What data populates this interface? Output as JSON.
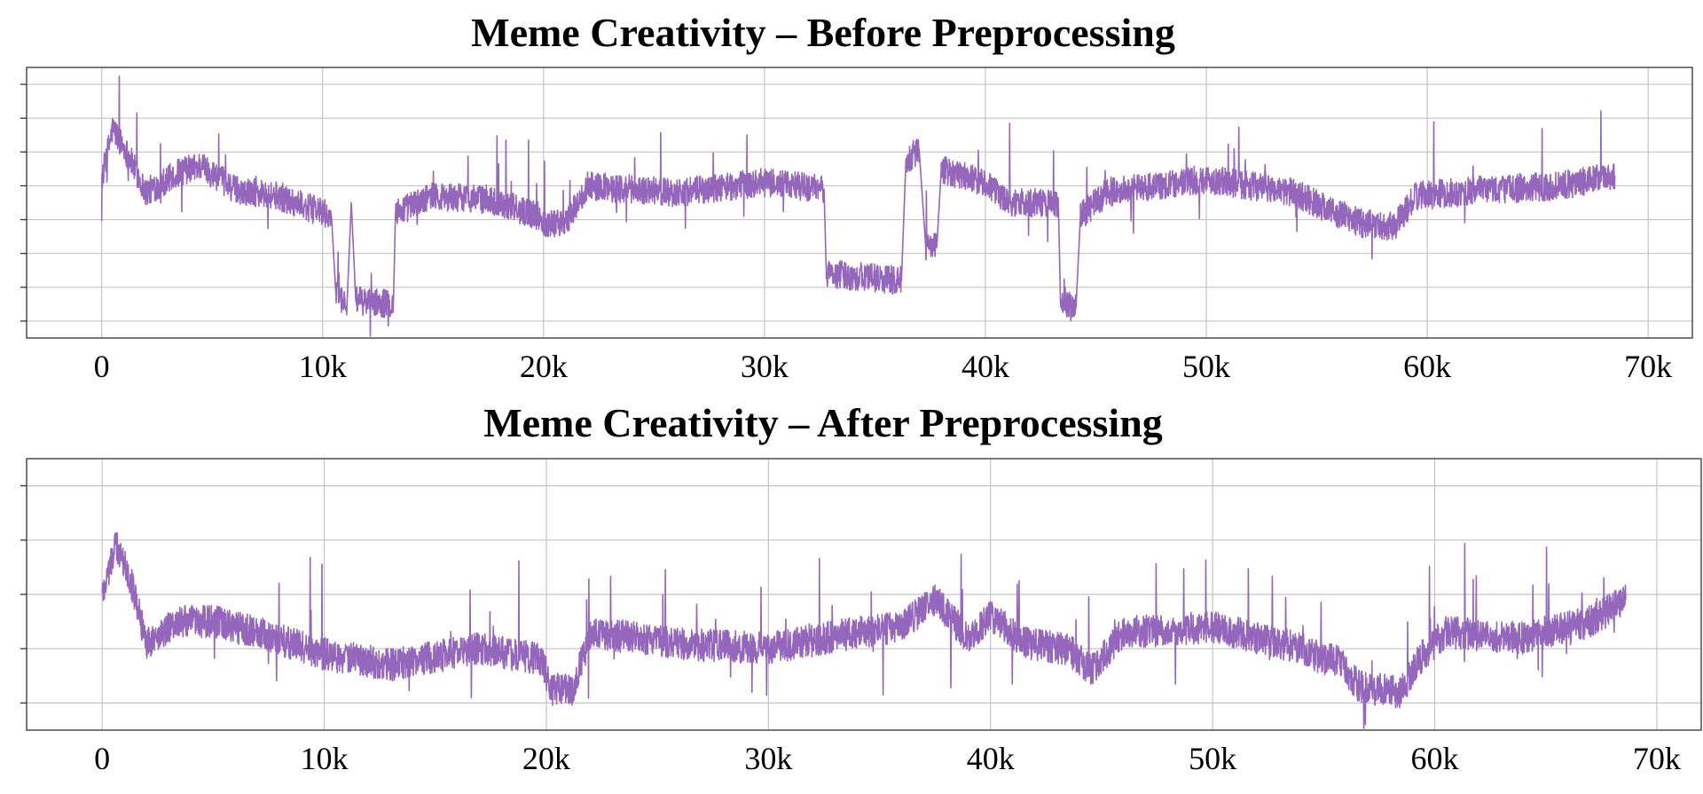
{
  "chart_data": [
    {
      "type": "line",
      "title": "Meme Creativity – Before Preprocessing",
      "xlabel": "",
      "ylabel": "",
      "xlim": [
        -3400,
        72000
      ],
      "ylim": [
        0,
        8
      ],
      "x_ticks": [
        0,
        10000,
        20000,
        30000,
        40000,
        50000,
        60000,
        70000
      ],
      "x_tick_labels": [
        "0",
        "10k",
        "20k",
        "30k",
        "40k",
        "50k",
        "60k",
        "70k"
      ],
      "y_tick_count": 8,
      "y_tick_labels_visible": false,
      "grid": true,
      "color": "#9467bd",
      "x_end": 68500,
      "noise": 0.85,
      "segments": [
        {
          "x": 0,
          "y": 4.7
        },
        {
          "x": 500,
          "y": 6.2
        },
        {
          "x": 1200,
          "y": 5.4
        },
        {
          "x": 2000,
          "y": 4.3
        },
        {
          "x": 3500,
          "y": 4.9
        },
        {
          "x": 4500,
          "y": 5.1
        },
        {
          "x": 6000,
          "y": 4.4
        },
        {
          "x": 8000,
          "y": 4.2
        },
        {
          "x": 10400,
          "y": 3.6
        },
        {
          "x": 10600,
          "y": 1.3,
          "jump": true
        },
        {
          "x": 11100,
          "y": 1.0
        },
        {
          "x": 11300,
          "y": 4.0,
          "jump": true
        },
        {
          "x": 11500,
          "y": 1.1,
          "jump": true
        },
        {
          "x": 13200,
          "y": 1.0
        },
        {
          "x": 13300,
          "y": 3.7,
          "jump": true
        },
        {
          "x": 15000,
          "y": 4.2
        },
        {
          "x": 17500,
          "y": 4.1
        },
        {
          "x": 19800,
          "y": 3.6
        },
        {
          "x": 20000,
          "y": 3.4
        },
        {
          "x": 21000,
          "y": 3.4
        },
        {
          "x": 22000,
          "y": 4.5
        },
        {
          "x": 26000,
          "y": 4.3
        },
        {
          "x": 30000,
          "y": 4.6
        },
        {
          "x": 32700,
          "y": 4.4
        },
        {
          "x": 32800,
          "y": 1.9,
          "jump": true
        },
        {
          "x": 36200,
          "y": 1.7
        },
        {
          "x": 36400,
          "y": 5.2,
          "jump": true
        },
        {
          "x": 37000,
          "y": 5.6
        },
        {
          "x": 37300,
          "y": 2.7,
          "jump": true
        },
        {
          "x": 37800,
          "y": 2.7
        },
        {
          "x": 38000,
          "y": 5.0,
          "jump": true
        },
        {
          "x": 40000,
          "y": 4.6
        },
        {
          "x": 41000,
          "y": 4.0
        },
        {
          "x": 43300,
          "y": 4.0
        },
        {
          "x": 43400,
          "y": 1.0,
          "jump": true
        },
        {
          "x": 44100,
          "y": 0.9
        },
        {
          "x": 44300,
          "y": 3.6,
          "jump": true
        },
        {
          "x": 45500,
          "y": 4.3
        },
        {
          "x": 50000,
          "y": 4.7
        },
        {
          "x": 54000,
          "y": 4.3
        },
        {
          "x": 55500,
          "y": 3.8
        },
        {
          "x": 57000,
          "y": 3.4
        },
        {
          "x": 58500,
          "y": 3.3
        },
        {
          "x": 59500,
          "y": 4.2
        },
        {
          "x": 63000,
          "y": 4.4
        },
        {
          "x": 66000,
          "y": 4.5
        },
        {
          "x": 68500,
          "y": 4.8
        }
      ]
    },
    {
      "type": "line",
      "title": "Meme Creativity – After Preprocessing",
      "xlabel": "",
      "ylabel": "",
      "xlim": [
        -3400,
        72000
      ],
      "ylim": [
        0,
        5
      ],
      "x_ticks": [
        0,
        10000,
        20000,
        30000,
        40000,
        50000,
        60000,
        70000
      ],
      "x_tick_labels": [
        "0",
        "10k",
        "20k",
        "30k",
        "40k",
        "50k",
        "60k",
        "70k"
      ],
      "y_tick_count": 5,
      "y_tick_labels_visible": false,
      "grid": true,
      "color": "#9467bd",
      "x_end": 68600,
      "noise": 0.6,
      "segments": [
        {
          "x": 0,
          "y": 2.5
        },
        {
          "x": 600,
          "y": 3.4
        },
        {
          "x": 1200,
          "y": 2.9
        },
        {
          "x": 2000,
          "y": 1.6
        },
        {
          "x": 3500,
          "y": 2.0
        },
        {
          "x": 5000,
          "y": 2.0
        },
        {
          "x": 7000,
          "y": 1.8
        },
        {
          "x": 10000,
          "y": 1.4
        },
        {
          "x": 13000,
          "y": 1.2
        },
        {
          "x": 17000,
          "y": 1.5
        },
        {
          "x": 19800,
          "y": 1.3
        },
        {
          "x": 20200,
          "y": 0.75
        },
        {
          "x": 21200,
          "y": 0.75
        },
        {
          "x": 22000,
          "y": 1.8
        },
        {
          "x": 26000,
          "y": 1.6
        },
        {
          "x": 30000,
          "y": 1.5
        },
        {
          "x": 34000,
          "y": 1.8
        },
        {
          "x": 36000,
          "y": 1.9
        },
        {
          "x": 37500,
          "y": 2.4
        },
        {
          "x": 39000,
          "y": 1.7
        },
        {
          "x": 40000,
          "y": 2.1
        },
        {
          "x": 41500,
          "y": 1.6
        },
        {
          "x": 43500,
          "y": 1.5
        },
        {
          "x": 44500,
          "y": 1.1
        },
        {
          "x": 46000,
          "y": 1.8
        },
        {
          "x": 50000,
          "y": 1.9
        },
        {
          "x": 54000,
          "y": 1.5
        },
        {
          "x": 55000,
          "y": 1.3
        },
        {
          "x": 55600,
          "y": 1.3
        },
        {
          "x": 56600,
          "y": 0.8
        },
        {
          "x": 58500,
          "y": 0.7
        },
        {
          "x": 59300,
          "y": 1.3
        },
        {
          "x": 60500,
          "y": 1.8
        },
        {
          "x": 64000,
          "y": 1.7
        },
        {
          "x": 67000,
          "y": 2.0
        },
        {
          "x": 68600,
          "y": 2.4
        }
      ]
    }
  ]
}
